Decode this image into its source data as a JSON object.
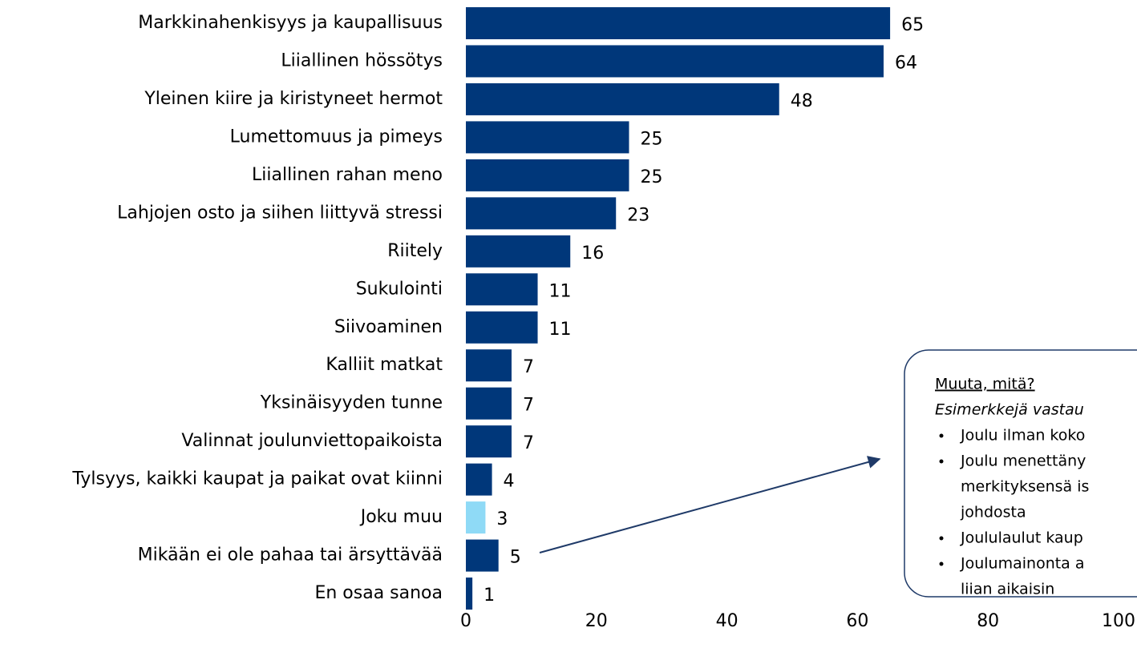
{
  "chart_data": {
    "type": "barh",
    "categories": [
      "Markkinahenkisyys ja kaupallisuus",
      "Liiallinen hössötys",
      "Yleinen kiire ja kiristyneet hermot",
      "Lumettomuus ja pimeys",
      "Liiallinen rahan meno",
      "Lahjojen osto ja siihen liittyvä stressi",
      "Riitely",
      "Sukulointi",
      "Siivoaminen",
      "Kalliit matkat",
      "Yksinäisyyden tunne",
      "Valinnat joulunviettopaikoista",
      "Tylsyys, kaikki kaupat ja paikat ovat kiinni",
      "Joku muu",
      "Mikään ei ole pahaa tai ärsyttävää",
      "En osaa sanoa"
    ],
    "values": [
      65,
      64,
      48,
      25,
      25,
      23,
      16,
      11,
      11,
      7,
      7,
      7,
      4,
      3,
      5,
      1
    ],
    "colors": [
      "#00377a",
      "#00377a",
      "#00377a",
      "#00377a",
      "#00377a",
      "#00377a",
      "#00377a",
      "#00377a",
      "#00377a",
      "#00377a",
      "#00377a",
      "#00377a",
      "#00377a",
      "#8fdaf6",
      "#00377a",
      "#00377a"
    ],
    "xlim": [
      0,
      100
    ],
    "xticks": [
      0,
      20,
      40,
      60,
      80,
      100
    ],
    "grid": false,
    "annotation": {
      "title": "Muuta, mitä?",
      "subtitle": "Esimerkkejä vastau",
      "items": [
        [
          "Joulu ilman koko"
        ],
        [
          "Joulu menettäny",
          "merkityksensä is",
          "johdosta"
        ],
        [
          "Joululaulut kaup"
        ],
        [
          "Joulumainonta a",
          "liian aikaisin"
        ]
      ]
    }
  }
}
